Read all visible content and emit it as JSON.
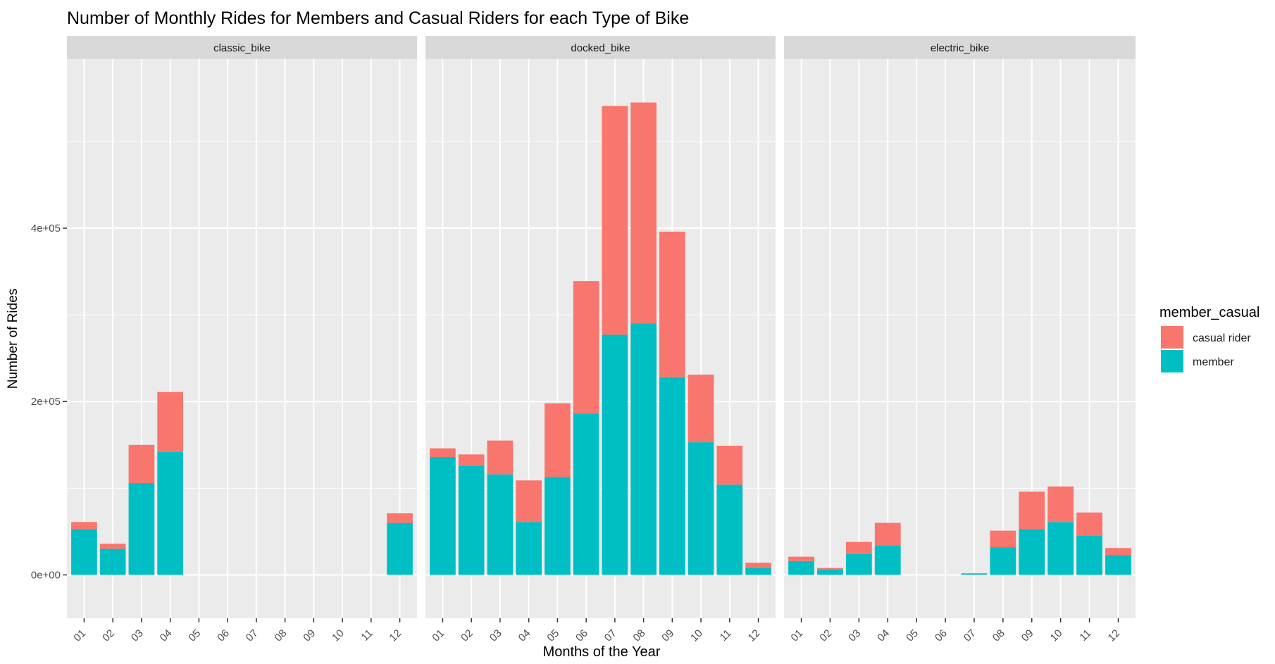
{
  "chart_data": {
    "type": "bar",
    "stacked": true,
    "title": "Number of Monthly Rides for Members and Casual Riders for each Type of Bike",
    "xlabel": "Months of the Year",
    "ylabel": "Number of Rides",
    "ylim": [
      -50000,
      595000
    ],
    "yticks": [
      0,
      200000,
      400000
    ],
    "ytick_labels": [
      "0e+00",
      "2e+05",
      "4e+05"
    ],
    "grid": true,
    "categories": [
      "01",
      "02",
      "03",
      "04",
      "05",
      "06",
      "07",
      "08",
      "09",
      "10",
      "11",
      "12"
    ],
    "legend": {
      "title": "member_casual",
      "position": "right",
      "entries": [
        "casual rider",
        "member"
      ]
    },
    "colors": {
      "casual rider": "#F8766D",
      "member": "#00BFC4",
      "panel": "#EBEBEB",
      "strip": "#D9D9D9"
    },
    "facets": [
      {
        "label": "classic_bike",
        "series": [
          {
            "name": "member",
            "values": [
              53000,
              30000,
              106000,
              142000,
              0,
              0,
              0,
              0,
              0,
              0,
              0,
              60000
            ]
          },
          {
            "name": "casual rider",
            "values": [
              8000,
              6000,
              44000,
              69000,
              0,
              0,
              0,
              0,
              0,
              0,
              0,
              11000
            ]
          }
        ]
      },
      {
        "label": "docked_bike",
        "series": [
          {
            "name": "member",
            "values": [
              136000,
              126000,
              116000,
              61000,
              113000,
              186000,
              277000,
              290000,
              228000,
              153000,
              104000,
              8000
            ]
          },
          {
            "name": "casual rider",
            "values": [
              10000,
              13000,
              39000,
              48000,
              85000,
              153000,
              264000,
              255000,
              168000,
              78000,
              45000,
              6000
            ]
          }
        ]
      },
      {
        "label": "electric_bike",
        "series": [
          {
            "name": "member",
            "values": [
              16000,
              6000,
              24000,
              34000,
              0,
              0,
              1000,
              32000,
              53000,
              61000,
              45000,
              23000
            ]
          },
          {
            "name": "casual rider",
            "values": [
              5000,
              2000,
              14000,
              26000,
              0,
              0,
              1000,
              19000,
              43000,
              41000,
              27000,
              8000
            ]
          }
        ]
      }
    ]
  }
}
